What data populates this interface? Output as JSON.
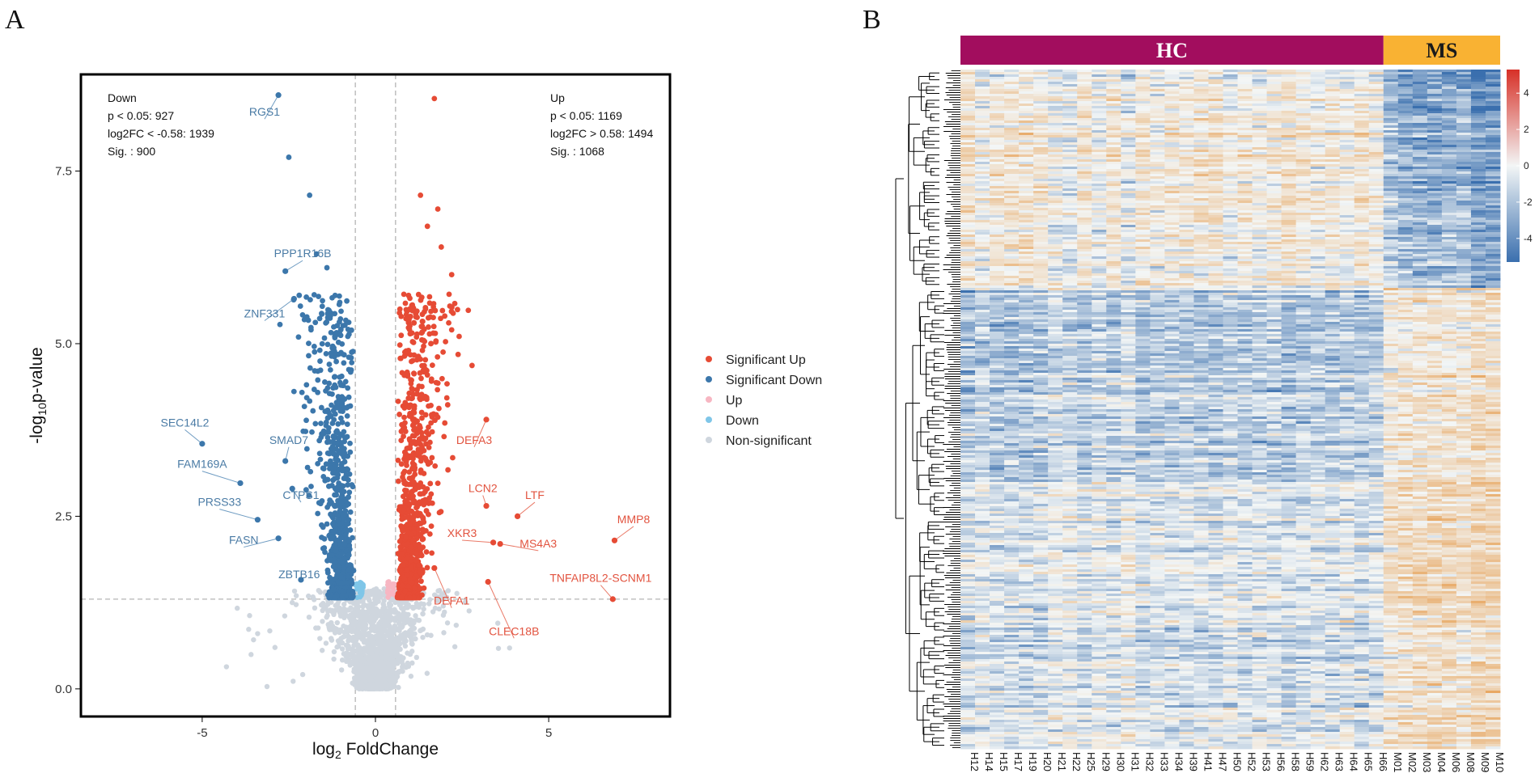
{
  "colors": {
    "sig_up": "#e64b35",
    "sig_down": "#3c77ab",
    "up": "#f7b6c2",
    "down": "#7fc6e8",
    "nonsig": "#cfd6de",
    "hc_bar": "#a20d5e",
    "ms_bar": "#f9b233",
    "heat_low": "#3a6fae",
    "heat_mid": "#f3f6f6",
    "heat_high": "#d73027"
  },
  "panels": {
    "a": "A",
    "b": "B"
  },
  "chart_data": [
    {
      "type": "scatter",
      "subtype": "volcano",
      "title": "",
      "xlabel": "log2 FoldChange",
      "xlabel_parts": {
        "pre": "log",
        "sub": "2",
        "post": " FoldChange"
      },
      "ylabel": "-log10p-value",
      "ylabel_parts": {
        "pre": "-log",
        "sub": "10",
        "post": "p-value"
      },
      "xlim": [
        -8.5,
        8.5
      ],
      "ylim": [
        -0.4,
        8.9
      ],
      "x_ticks": [
        -5,
        0,
        5
      ],
      "x_tick_labels": [
        "-5",
        "0",
        "5"
      ],
      "y_ticks": [
        0,
        2.5,
        5,
        7.5
      ],
      "y_tick_labels": [
        "0.0",
        "2.5",
        "5.0",
        "7.5"
      ],
      "thresholds": {
        "fc_low": -0.58,
        "fc_high": 0.58,
        "p": 1.3
      },
      "stats_down": {
        "heading": "Down",
        "lines": [
          "p < 0.05: 927",
          "log2FC < -0.58: 1939",
          "Sig. : 900"
        ]
      },
      "stats_up": {
        "heading": "Up",
        "lines": [
          "p < 0.05: 1169",
          "log2FC > 0.58: 1494",
          "Sig. : 1068"
        ]
      },
      "legend": [
        {
          "label": "Significant Up",
          "key": "sig_up"
        },
        {
          "label": "Significant Down",
          "key": "sig_down"
        },
        {
          "label": "Up",
          "key": "up"
        },
        {
          "label": "Down",
          "key": "down"
        },
        {
          "label": "Non-significant",
          "key": "nonsig"
        }
      ],
      "labeled_genes": [
        {
          "gene": "RGS1",
          "x": -2.8,
          "y": 8.6,
          "lx": -3.2,
          "ly": 8.3,
          "group": "down"
        },
        {
          "gene": "PPP1R16B",
          "x": -2.6,
          "y": 6.05,
          "lx": -2.1,
          "ly": 6.25,
          "group": "down"
        },
        {
          "gene": "ZNF331",
          "x": -2.35,
          "y": 5.65,
          "lx": -3.2,
          "ly": 5.38,
          "group": "down"
        },
        {
          "gene": "SEC14L2",
          "x": -5.0,
          "y": 3.55,
          "lx": -5.5,
          "ly": 3.8,
          "group": "down"
        },
        {
          "gene": "SMAD7",
          "x": -2.6,
          "y": 3.3,
          "lx": -2.5,
          "ly": 3.55,
          "group": "down"
        },
        {
          "gene": "FAM169A",
          "x": -3.9,
          "y": 2.98,
          "lx": -5.0,
          "ly": 3.2,
          "group": "down"
        },
        {
          "gene": "CTPS1",
          "x": -2.4,
          "y": 2.9,
          "lx": -2.15,
          "ly": 2.75,
          "group": "down"
        },
        {
          "gene": "PRSS33",
          "x": -3.4,
          "y": 2.45,
          "lx": -4.5,
          "ly": 2.65,
          "group": "down"
        },
        {
          "gene": "FASN",
          "x": -2.8,
          "y": 2.18,
          "lx": -3.8,
          "ly": 2.1,
          "group": "down"
        },
        {
          "gene": "ZBTB16",
          "x": -2.15,
          "y": 1.58,
          "lx": -2.2,
          "ly": 1.6,
          "group": "down"
        },
        {
          "gene": "DEFA3",
          "x": 3.2,
          "y": 3.9,
          "lx": 2.85,
          "ly": 3.55,
          "group": "up"
        },
        {
          "gene": "LCN2",
          "x": 3.2,
          "y": 2.65,
          "lx": 3.1,
          "ly": 2.85,
          "group": "up"
        },
        {
          "gene": "LTF",
          "x": 4.1,
          "y": 2.5,
          "lx": 4.6,
          "ly": 2.75,
          "group": "up"
        },
        {
          "gene": "MMP8",
          "x": 6.9,
          "y": 2.15,
          "lx": 7.45,
          "ly": 2.4,
          "group": "up"
        },
        {
          "gene": "XKR3",
          "x": 3.4,
          "y": 2.12,
          "lx": 2.5,
          "ly": 2.2,
          "group": "up"
        },
        {
          "gene": "MS4A3",
          "x": 3.6,
          "y": 2.1,
          "lx": 4.7,
          "ly": 2.05,
          "group": "up"
        },
        {
          "gene": "TNFAIP8L2-SCNM1",
          "x": 6.85,
          "y": 1.3,
          "lx": 6.5,
          "ly": 1.55,
          "group": "up"
        },
        {
          "gene": "DEFA1",
          "x": 1.7,
          "y": 1.75,
          "lx": 2.2,
          "ly": 1.22,
          "group": "up"
        },
        {
          "gene": "CLEC18B",
          "x": 3.25,
          "y": 1.55,
          "lx": 4.0,
          "ly": 0.78,
          "group": "up"
        }
      ]
    },
    {
      "type": "heatmap",
      "groups": [
        {
          "label": "HC",
          "start": 0,
          "count": 29,
          "key": "hc_bar"
        },
        {
          "label": "MS",
          "start": 29,
          "count": 8,
          "key": "ms_bar"
        }
      ],
      "samples": [
        "H12",
        "H14",
        "H15",
        "H17",
        "H19",
        "H20",
        "H21",
        "H22",
        "H25",
        "H29",
        "H30",
        "H31",
        "H32",
        "H33",
        "H34",
        "H39",
        "H41",
        "H47",
        "H50",
        "H52",
        "H53",
        "H56",
        "H58",
        "H59",
        "H62",
        "H63",
        "H64",
        "H65",
        "H66",
        "M01",
        "M02",
        "M03",
        "M04",
        "M06",
        "M08",
        "M09",
        "M10"
      ],
      "colorbar": {
        "min": -5.3,
        "max": 5.3,
        "ticks": [
          4,
          2,
          0,
          -2,
          -4
        ],
        "tick_labels": [
          "4",
          "2",
          "0",
          "-2",
          "-4"
        ]
      },
      "row_blocks": [
        {
          "rows": 20,
          "hc": 0.12,
          "ms": -0.72
        },
        {
          "rows": 40,
          "hc": 0.2,
          "ms": -0.6
        },
        {
          "rows": 30,
          "hc": 0.14,
          "ms": -0.5
        },
        {
          "rows": 80,
          "hc": -0.32,
          "ms": 0.28
        },
        {
          "rows": 50,
          "hc": -0.12,
          "ms": 0.42
        },
        {
          "rows": 60,
          "hc": -0.16,
          "ms": 0.32
        }
      ],
      "column_bias": [
        0.15,
        -0.2,
        0.05,
        0.1,
        0.12,
        0.05,
        -0.25,
        -0.35,
        0.1,
        -0.3,
        0.05,
        -0.45,
        0.1,
        -0.1,
        0.0,
        -0.05,
        0.05,
        0.1,
        -0.2,
        0.0,
        -0.15,
        -0.05,
        0.2,
        0.0,
        -0.1,
        0.0,
        -0.2,
        0.05,
        -0.1,
        0.55,
        0.3,
        0.25,
        0.2,
        0.25,
        0.35,
        -0.1,
        -0.05
      ]
    }
  ]
}
